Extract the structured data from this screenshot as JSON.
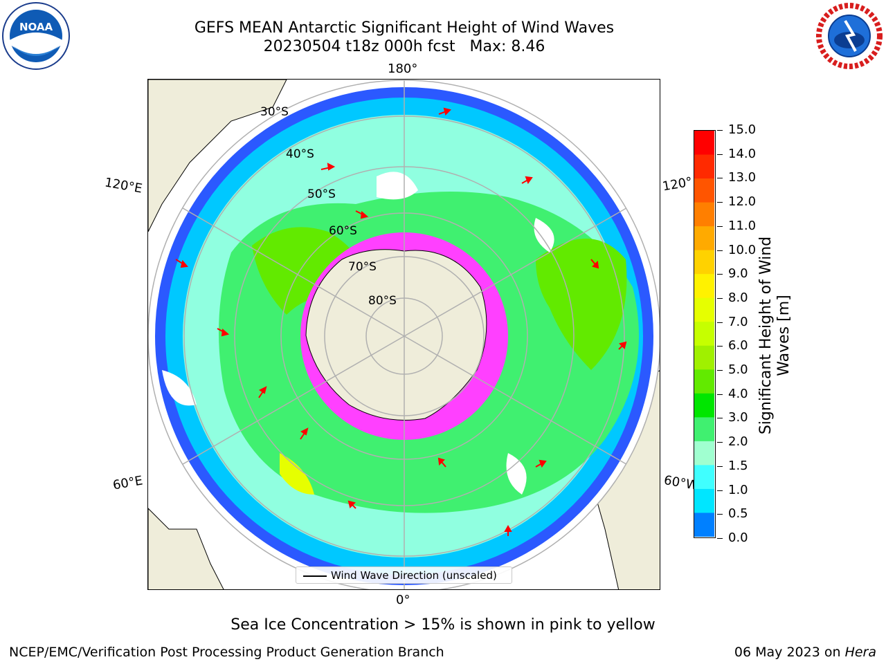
{
  "title": {
    "line1": "GEFS MEAN Antarctic Significant Height of Wind Waves",
    "line2": "20230504 t18z 000h fcst   Max: 8.46"
  },
  "map": {
    "lon_labels": {
      "top": "180°",
      "bottom": "0°",
      "upper_left": "120°E",
      "upper_right": "120°",
      "lower_left": "60°E",
      "lower_right": "60°W"
    },
    "lat_labels": [
      "30°S",
      "40°S",
      "50°S",
      "60°S",
      "70°S",
      "80°S"
    ],
    "legend": "Wind Wave Direction (unscaled)",
    "colors": {
      "land": "#efedda",
      "ice": "#ff40ff",
      "arrow": "#ff0000",
      "grid": "#b0b0b0"
    }
  },
  "colorbar": {
    "title_line1": "Significant Height of Wind",
    "title_line2": "Waves [m]",
    "ticks": [
      "15.0",
      "14.0",
      "13.0",
      "12.0",
      "11.0",
      "10.0",
      "9.0",
      "8.0",
      "7.0",
      "6.0",
      "5.0",
      "4.0",
      "3.0",
      "2.0",
      "1.5",
      "1.0",
      "0.5",
      "0.0"
    ],
    "colors": [
      "#ff0000",
      "#ff2a00",
      "#ff5500",
      "#ff7f00",
      "#ffaa00",
      "#ffd200",
      "#fff200",
      "#e6ff00",
      "#c6ff00",
      "#a0f000",
      "#62ea00",
      "#00e600",
      "#40f070",
      "#a0ffd0",
      "#40ffff",
      "#00e6ff",
      "#0080ff",
      "#0000ff"
    ]
  },
  "caption": "Sea Ice Concentration > 15% is shown in pink to yellow",
  "footer": {
    "left": "NCEP/EMC/Verification Post Processing Product Generation Branch",
    "right_date": "06 May 2023 on ",
    "right_host": "Hera"
  },
  "logos": {
    "noaa": "NOAA",
    "nws": "NATIONAL WEATHER SERVICE"
  }
}
